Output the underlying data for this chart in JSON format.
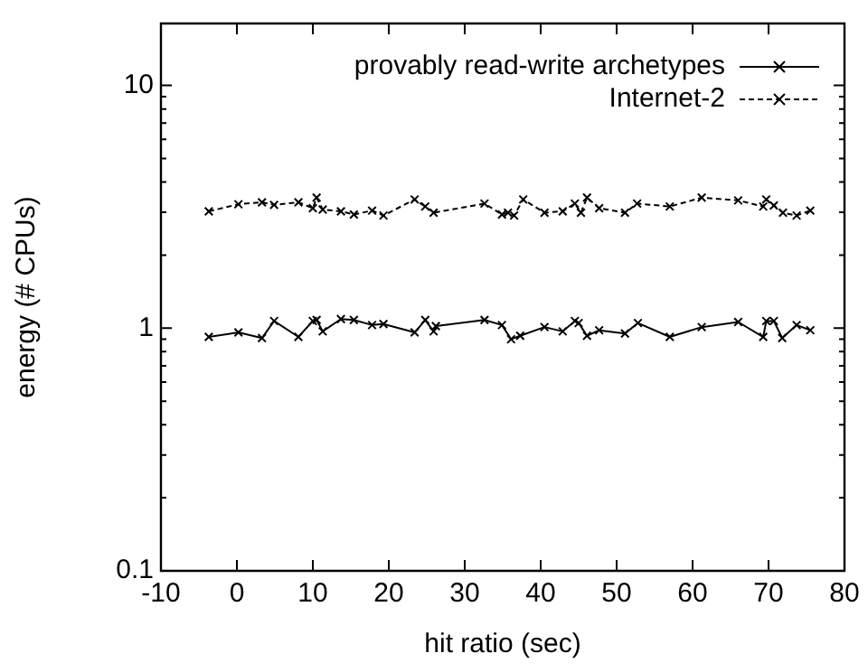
{
  "chart_data": {
    "type": "line",
    "xlabel": "hit ratio (sec)",
    "ylabel": "energy (# CPUs)",
    "log": "y",
    "xlim": [
      -10,
      80
    ],
    "xticks": [
      -10,
      0,
      10,
      20,
      30,
      40,
      50,
      60,
      70,
      80
    ],
    "ylim": [
      0.1,
      18
    ],
    "yticks": [
      0.1,
      {
        "value": 0.2,
        "label": null
      },
      {
        "value": 0.3,
        "label": null
      },
      {
        "value": 0.4,
        "label": null
      },
      {
        "value": 0.5,
        "label": null
      },
      {
        "value": 0.6,
        "label": null
      },
      {
        "value": 0.7,
        "label": null
      },
      {
        "value": 0.8,
        "label": null
      },
      {
        "value": 0.9,
        "label": null
      },
      1,
      {
        "value": 2,
        "label": null
      },
      {
        "value": 3,
        "label": null
      },
      {
        "value": 4,
        "label": null
      },
      {
        "value": 5,
        "label": null
      },
      {
        "value": 6,
        "label": null
      },
      {
        "value": 7,
        "label": null
      },
      {
        "value": 8,
        "label": null
      },
      {
        "value": 9,
        "label": null
      },
      10
    ],
    "grid": false,
    "legend": "top right",
    "marker": "cross",
    "series": [
      {
        "name": "provably read-write archetypes",
        "color": "#000000",
        "line_style": "solid",
        "x": [
          -3.7,
          0.2,
          3.3,
          4.9,
          8.1,
          10.0,
          10.5,
          11.3,
          13.7,
          15.4,
          17.8,
          19.3,
          23.4,
          24.8,
          25.9,
          26.2,
          32.6,
          34.9,
          36.1,
          37.3,
          40.5,
          42.9,
          44.5,
          45.0,
          46.1,
          47.7,
          51.1,
          52.8,
          57.0,
          61.2,
          66.0,
          69.3,
          69.7,
          70.7,
          71.8,
          73.7,
          75.5
        ],
        "values": [
          0.92,
          0.96,
          0.91,
          1.07,
          0.92,
          1.07,
          1.08,
          0.97,
          1.09,
          1.08,
          1.03,
          1.04,
          0.96,
          1.08,
          0.97,
          1.02,
          1.08,
          1.03,
          0.9,
          0.93,
          1.01,
          0.97,
          1.07,
          1.05,
          0.93,
          0.98,
          0.95,
          1.05,
          0.92,
          1.01,
          1.06,
          0.92,
          1.07,
          1.07,
          0.91,
          1.03,
          0.98
        ]
      },
      {
        "name": "Internet-2",
        "color": "#000000",
        "line_style": "dashed",
        "x": [
          -3.7,
          0.2,
          3.3,
          4.9,
          8.1,
          10.0,
          10.5,
          11.3,
          13.7,
          15.4,
          17.8,
          19.3,
          23.4,
          24.8,
          25.9,
          32.6,
          34.9,
          35.7,
          36.5,
          37.7,
          40.5,
          42.9,
          44.5,
          45.3,
          46.1,
          47.7,
          51.1,
          52.7,
          57.0,
          61.2,
          66.0,
          69.3,
          69.7,
          70.7,
          71.9,
          73.7,
          75.5
        ],
        "values": [
          3.03,
          3.24,
          3.3,
          3.22,
          3.3,
          3.12,
          3.45,
          3.08,
          3.03,
          2.94,
          3.05,
          2.91,
          3.39,
          3.17,
          2.99,
          3.26,
          2.94,
          2.99,
          2.91,
          3.39,
          2.99,
          3.03,
          3.26,
          2.99,
          3.45,
          3.12,
          2.99,
          3.26,
          3.17,
          3.45,
          3.36,
          3.17,
          3.39,
          3.2,
          2.99,
          2.91,
          3.05
        ]
      }
    ]
  }
}
